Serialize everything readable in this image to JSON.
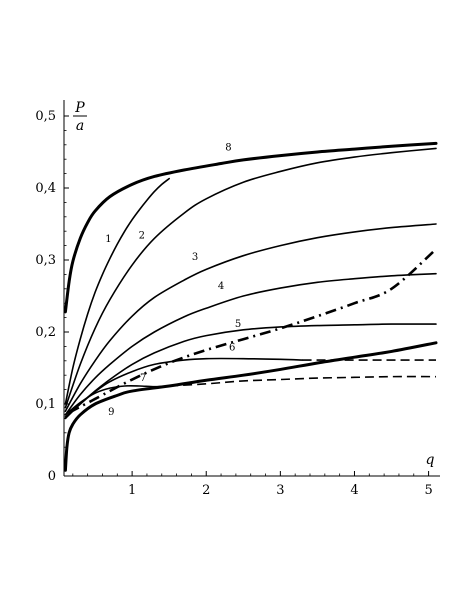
{
  "chart_data": {
    "type": "line",
    "title": "",
    "xlabel": "q",
    "ylabel_numerator": "P",
    "ylabel_denominator": "a",
    "xlim": [
      0,
      5.1
    ],
    "ylim": [
      0,
      0.5
    ],
    "grid": false,
    "legend": "none",
    "xticks": [
      {
        "value": 1,
        "label": "1"
      },
      {
        "value": 2,
        "label": "2"
      },
      {
        "value": 3,
        "label": "3"
      },
      {
        "value": 4,
        "label": "4"
      },
      {
        "value": 5,
        "label": "5"
      }
    ],
    "yticks": [
      {
        "value": 0,
        "label": "0"
      },
      {
        "value": 0.1,
        "label": "0,1"
      },
      {
        "value": 0.2,
        "label": "0,2"
      },
      {
        "value": 0.3,
        "label": "0,3"
      },
      {
        "value": 0.4,
        "label": "0,4"
      },
      {
        "value": 0.5,
        "label": "0,5"
      }
    ],
    "series": [
      {
        "style": "thick-solid",
        "points": [
          [
            0.1,
            0.228
          ],
          [
            0.15,
            0.27
          ],
          [
            0.2,
            0.298
          ],
          [
            0.3,
            0.33
          ],
          [
            0.4,
            0.352
          ],
          [
            0.5,
            0.368
          ],
          [
            0.7,
            0.388
          ],
          [
            1.0,
            0.405
          ],
          [
            1.3,
            0.416
          ],
          [
            1.7,
            0.425
          ],
          [
            2.2,
            0.434
          ],
          [
            2.5,
            0.439
          ],
          [
            3.0,
            0.445
          ],
          [
            3.5,
            0.45
          ],
          [
            4.0,
            0.454
          ],
          [
            4.5,
            0.458
          ],
          [
            5.1,
            0.462
          ]
        ]
      },
      {
        "style": "solid",
        "points": [
          [
            0.1,
            0.1
          ],
          [
            0.2,
            0.15
          ],
          [
            0.3,
            0.19
          ],
          [
            0.4,
            0.225
          ],
          [
            0.5,
            0.255
          ],
          [
            0.6,
            0.28
          ],
          [
            0.7,
            0.302
          ],
          [
            0.8,
            0.322
          ],
          [
            0.9,
            0.34
          ],
          [
            1.0,
            0.356
          ],
          [
            1.1,
            0.37
          ],
          [
            1.2,
            0.383
          ],
          [
            1.3,
            0.395
          ],
          [
            1.4,
            0.405
          ],
          [
            1.5,
            0.413
          ]
        ]
      },
      {
        "style": "solid",
        "points": [
          [
            0.1,
            0.095
          ],
          [
            0.3,
            0.155
          ],
          [
            0.5,
            0.205
          ],
          [
            0.7,
            0.245
          ],
          [
            1.0,
            0.293
          ],
          [
            1.3,
            0.33
          ],
          [
            1.7,
            0.365
          ],
          [
            2.0,
            0.385
          ],
          [
            2.5,
            0.408
          ],
          [
            3.0,
            0.423
          ],
          [
            3.5,
            0.435
          ],
          [
            4.0,
            0.443
          ],
          [
            4.5,
            0.449
          ],
          [
            5.1,
            0.455
          ]
        ]
      },
      {
        "style": "solid",
        "points": [
          [
            0.1,
            0.09
          ],
          [
            0.3,
            0.128
          ],
          [
            0.5,
            0.16
          ],
          [
            0.7,
            0.188
          ],
          [
            1.0,
            0.222
          ],
          [
            1.3,
            0.248
          ],
          [
            1.7,
            0.272
          ],
          [
            2.0,
            0.287
          ],
          [
            2.5,
            0.306
          ],
          [
            3.0,
            0.32
          ],
          [
            3.5,
            0.331
          ],
          [
            4.0,
            0.339
          ],
          [
            4.5,
            0.345
          ],
          [
            5.1,
            0.35
          ]
        ]
      },
      {
        "style": "solid",
        "points": [
          [
            0.1,
            0.085
          ],
          [
            0.3,
            0.113
          ],
          [
            0.5,
            0.136
          ],
          [
            0.7,
            0.155
          ],
          [
            1.0,
            0.18
          ],
          [
            1.3,
            0.2
          ],
          [
            1.7,
            0.221
          ],
          [
            2.0,
            0.233
          ],
          [
            2.5,
            0.25
          ],
          [
            3.0,
            0.261
          ],
          [
            3.5,
            0.269
          ],
          [
            4.0,
            0.274
          ],
          [
            4.5,
            0.278
          ],
          [
            5.1,
            0.281
          ]
        ]
      },
      {
        "style": "solid",
        "points": [
          [
            0.1,
            0.08
          ],
          [
            0.3,
            0.1
          ],
          [
            0.5,
            0.118
          ],
          [
            0.7,
            0.134
          ],
          [
            1.0,
            0.155
          ],
          [
            1.3,
            0.171
          ],
          [
            1.7,
            0.187
          ],
          [
            2.0,
            0.195
          ],
          [
            2.5,
            0.203
          ],
          [
            3.0,
            0.207
          ],
          [
            3.5,
            0.209
          ],
          [
            4.0,
            0.21
          ],
          [
            4.5,
            0.211
          ],
          [
            5.1,
            0.211
          ]
        ]
      },
      {
        "style": "solid-then-dashed",
        "points": [
          [
            0.1,
            0.082
          ],
          [
            0.3,
            0.1
          ],
          [
            0.5,
            0.117
          ],
          [
            0.7,
            0.131
          ],
          [
            1.0,
            0.145
          ],
          [
            1.3,
            0.155
          ],
          [
            1.7,
            0.161
          ],
          [
            2.0,
            0.163
          ],
          [
            2.5,
            0.163
          ],
          [
            3.0,
            0.162
          ],
          [
            3.3,
            0.161
          ]
        ],
        "dashed_points": [
          [
            3.3,
            0.161
          ],
          [
            3.5,
            0.161
          ],
          [
            4.0,
            0.161
          ],
          [
            4.5,
            0.161
          ],
          [
            5.1,
            0.161
          ]
        ]
      },
      {
        "style": "solid-then-dashed",
        "points": [
          [
            0.1,
            0.085
          ],
          [
            0.3,
            0.102
          ],
          [
            0.5,
            0.115
          ],
          [
            0.7,
            0.122
          ],
          [
            0.9,
            0.125
          ],
          [
            1.1,
            0.125
          ],
          [
            1.3,
            0.124
          ],
          [
            1.5,
            0.125
          ]
        ],
        "dashed_points": [
          [
            1.5,
            0.125
          ],
          [
            2.0,
            0.128
          ],
          [
            2.5,
            0.132
          ],
          [
            3.0,
            0.134
          ],
          [
            3.5,
            0.136
          ],
          [
            4.0,
            0.137
          ],
          [
            4.5,
            0.138
          ],
          [
            5.1,
            0.138
          ]
        ]
      },
      {
        "style": "dash-dot",
        "points": [
          [
            0.15,
            0.088
          ],
          [
            0.5,
            0.107
          ],
          [
            1.0,
            0.134
          ],
          [
            1.5,
            0.157
          ],
          [
            2.0,
            0.175
          ],
          [
            2.5,
            0.19
          ],
          [
            3.0,
            0.205
          ],
          [
            3.5,
            0.222
          ],
          [
            4.0,
            0.24
          ],
          [
            4.5,
            0.26
          ],
          [
            5.1,
            0.315
          ]
        ]
      },
      {
        "style": "thick-solid",
        "points": [
          [
            0.1,
            0.008
          ],
          [
            0.12,
            0.04
          ],
          [
            0.15,
            0.06
          ],
          [
            0.2,
            0.072
          ],
          [
            0.3,
            0.085
          ],
          [
            0.5,
            0.1
          ],
          [
            0.8,
            0.112
          ],
          [
            1.0,
            0.118
          ],
          [
            1.5,
            0.125
          ],
          [
            2.0,
            0.133
          ],
          [
            2.5,
            0.14
          ],
          [
            3.0,
            0.148
          ],
          [
            3.5,
            0.157
          ],
          [
            4.0,
            0.165
          ],
          [
            4.5,
            0.173
          ],
          [
            5.1,
            0.185
          ]
        ]
      }
    ],
    "annotations": [
      {
        "text": "1",
        "x": 0.68,
        "y": 0.325
      },
      {
        "text": "2",
        "x": 1.13,
        "y": 0.33
      },
      {
        "text": "3",
        "x": 1.85,
        "y": 0.3
      },
      {
        "text": "4",
        "x": 2.2,
        "y": 0.26
      },
      {
        "text": "5",
        "x": 2.43,
        "y": 0.207
      },
      {
        "text": "6",
        "x": 2.35,
        "y": 0.174
      },
      {
        "text": "7",
        "x": 1.15,
        "y": 0.132
      },
      {
        "text": "8",
        "x": 2.3,
        "y": 0.452
      },
      {
        "text": "9",
        "x": 0.72,
        "y": 0.085
      }
    ]
  }
}
